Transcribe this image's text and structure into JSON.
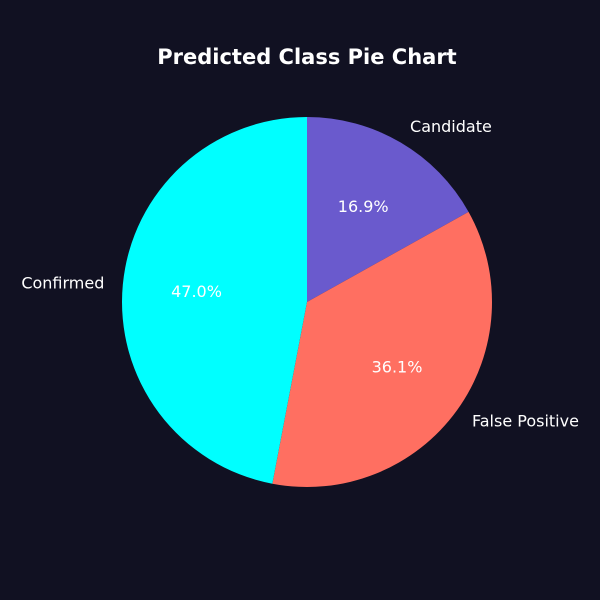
{
  "chart_data": {
    "type": "pie",
    "title": "Predicted Class Pie Chart",
    "slices": [
      {
        "label": "Candidate",
        "value": 16.9,
        "pct_label": "16.9%",
        "color": "#6a5acd"
      },
      {
        "label": "False Positive",
        "value": 36.1,
        "pct_label": "36.1%",
        "color": "#ff6f61"
      },
      {
        "label": "Confirmed",
        "value": 47.0,
        "pct_label": "47.0%",
        "color": "#00ffff"
      }
    ],
    "start_angle": 90,
    "direction": "clockwise",
    "background": "#111122",
    "text_color": "#ffffff"
  }
}
